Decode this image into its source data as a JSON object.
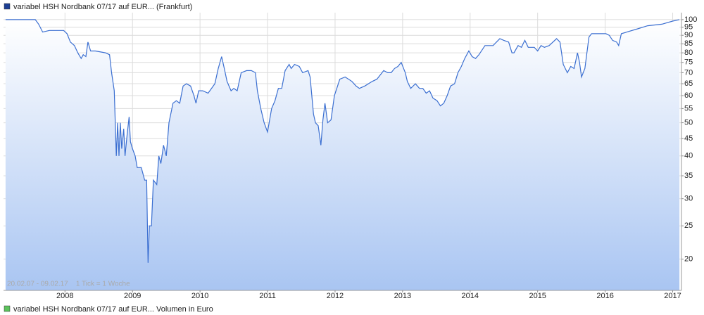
{
  "chart_data": {
    "type": "line",
    "series": [
      {
        "name": "variabel HSH Nordbank 07/17 auf EUR... (Frankfurt)",
        "color": "#3b6fd1",
        "legend_color": "#1c3f94",
        "x": [
          2007.12,
          2007.56,
          2007.61,
          2007.67,
          2007.77,
          2007.98,
          2008.03,
          2008.08,
          2008.14,
          2008.19,
          2008.24,
          2008.27,
          2008.31,
          2008.34,
          2008.38,
          2008.45,
          2008.6,
          2008.66,
          2008.69,
          2008.73,
          2008.76,
          2008.78,
          2008.8,
          2008.82,
          2008.84,
          2008.87,
          2008.89,
          2008.92,
          2008.95,
          2008.97,
          2009.0,
          2009.04,
          2009.07,
          2009.13,
          2009.18,
          2009.21,
          2009.23,
          2009.25,
          2009.28,
          2009.31,
          2009.36,
          2009.39,
          2009.42,
          2009.46,
          2009.5,
          2009.54,
          2009.6,
          2009.65,
          2009.7,
          2009.75,
          2009.8,
          2009.86,
          2009.91,
          2009.94,
          2009.98,
          2010.04,
          2010.12,
          2010.22,
          2010.27,
          2010.32,
          2010.36,
          2010.4,
          2010.46,
          2010.5,
          2010.55,
          2010.61,
          2010.69,
          2010.76,
          2010.82,
          2010.85,
          2010.9,
          2010.95,
          2011.0,
          2011.06,
          2011.11,
          2011.16,
          2011.21,
          2011.26,
          2011.32,
          2011.35,
          2011.4,
          2011.47,
          2011.52,
          2011.6,
          2011.63,
          2011.68,
          2011.71,
          2011.75,
          2011.79,
          2011.82,
          2011.85,
          2011.89,
          2011.94,
          2011.99,
          2012.07,
          2012.15,
          2012.25,
          2012.31,
          2012.36,
          2012.44,
          2012.55,
          2012.62,
          2012.72,
          2012.78,
          2012.83,
          2012.88,
          2012.93,
          2012.98,
          2013.04,
          2013.07,
          2013.12,
          2013.19,
          2013.25,
          2013.3,
          2013.35,
          2013.4,
          2013.45,
          2013.51,
          2013.56,
          2013.61,
          2013.66,
          2013.71,
          2013.77,
          2013.82,
          2013.87,
          2013.92,
          2013.98,
          2014.03,
          2014.08,
          2014.13,
          2014.22,
          2014.29,
          2014.34,
          2014.39,
          2014.44,
          2014.5,
          2014.57,
          2014.62,
          2014.65,
          2014.71,
          2014.76,
          2014.81,
          2014.86,
          2014.95,
          2015.0,
          2015.05,
          2015.1,
          2015.17,
          2015.28,
          2015.33,
          2015.38,
          2015.44,
          2015.49,
          2015.54,
          2015.59,
          2015.62,
          2015.65,
          2015.7,
          2015.76,
          2015.8,
          2015.9,
          2016.01,
          2016.06,
          2016.11,
          2016.17,
          2016.2,
          2016.24,
          2016.32,
          2016.48,
          2016.63,
          2016.84,
          2017.0,
          2017.1
        ],
        "values": [
          100,
          100,
          97,
          92,
          93,
          93,
          91,
          86,
          84,
          80,
          77,
          79,
          78,
          86,
          81,
          81,
          80,
          79,
          70,
          62,
          40,
          50,
          40,
          50,
          42,
          48,
          40,
          46,
          52,
          44,
          42,
          40,
          37,
          37,
          34,
          34,
          19.5,
          25,
          25,
          34,
          33,
          40,
          38,
          43,
          40,
          50,
          57,
          58,
          57,
          64,
          65,
          64,
          60,
          57,
          62,
          62,
          61,
          65,
          72,
          78,
          72,
          66,
          62,
          63,
          62,
          70,
          71,
          71,
          70,
          62,
          55,
          50,
          47,
          55,
          58,
          63,
          63,
          71,
          74,
          72,
          74,
          73,
          70,
          71,
          68,
          53,
          50,
          49,
          43,
          51,
          57,
          50,
          51,
          60,
          67,
          68,
          66,
          64,
          63,
          64,
          66,
          67,
          71,
          70,
          70,
          72,
          73,
          75,
          70,
          66,
          63,
          65,
          63,
          63,
          61,
          62,
          59,
          58,
          56,
          57,
          60,
          64,
          65,
          70,
          73,
          77,
          81,
          78,
          77,
          79,
          84,
          84,
          84,
          86,
          88,
          87,
          86,
          80,
          80,
          84,
          83,
          87,
          83,
          83,
          81,
          84,
          83,
          84,
          88,
          86,
          74,
          70,
          73,
          72,
          80,
          75,
          68,
          72,
          89,
          91,
          91,
          91,
          90,
          87,
          86,
          84,
          91,
          92,
          94,
          96,
          97,
          99,
          100
        ]
      }
    ],
    "xlim": [
      2007.09,
      2017.13
    ],
    "xticks": [
      2008,
      2009,
      2010,
      2011,
      2012,
      2013,
      2014,
      2015,
      2016,
      2017
    ],
    "ylim": [
      16.2,
      104.8
    ],
    "yticks": [
      20,
      25,
      30,
      35,
      40,
      45,
      50,
      55,
      60,
      65,
      70,
      75,
      80,
      85,
      90,
      95,
      100
    ],
    "log_scale": true,
    "grid": true,
    "info": "20.02.07 - 09.02.17    1 Tick = 1 Woche",
    "volume_legend": {
      "name": "variabel HSH Nordbank 07/17 auf EUR... Volumen in Euro",
      "color": "#5cc35c"
    }
  }
}
